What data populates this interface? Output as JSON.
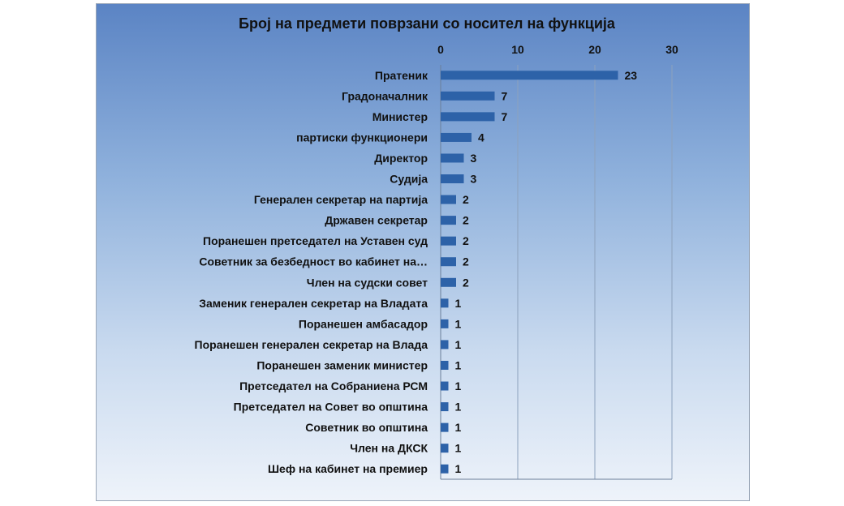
{
  "chart_data": {
    "type": "bar",
    "orientation": "horizontal",
    "title": "Број на предмети поврзани со носител на функција",
    "xlim": [
      0,
      30
    ],
    "x_ticks": [
      "0",
      "10",
      "20",
      "30"
    ],
    "x_axis_position": "top",
    "grid": true,
    "legend": "none",
    "bar_color": "#2d62a8",
    "categories": [
      "Пратеник",
      "Градоначалник",
      "Министер",
      "партиски функционери",
      "Директор",
      "Судија",
      "Генерален секретар на партија",
      "Државен секретар",
      "Поранешен претседател на Уставен суд",
      "Советник за безбедност во кабинет на…",
      "Член на судски совет",
      "Заменик генерален секретар на Владата",
      "Поранешен амбасадор",
      "Поранешен генерален секретар на Влада",
      "Поранешен заменик министер",
      "Претседател на Собраниена РСМ",
      "Претседател на Совет во општина",
      "Советник во општина",
      "Член на ДКСК",
      "Шеф на кабинет на премиер"
    ],
    "values": [
      23,
      7,
      7,
      4,
      3,
      3,
      2,
      2,
      2,
      2,
      2,
      1,
      1,
      1,
      1,
      1,
      1,
      1,
      1,
      1
    ],
    "value_labels": [
      "23",
      "7",
      "7",
      "4",
      "3",
      "3",
      "2",
      "2",
      "2",
      "2",
      "2",
      "1",
      "1",
      "1",
      "1",
      "1",
      "1",
      "1",
      "1",
      "1"
    ]
  }
}
